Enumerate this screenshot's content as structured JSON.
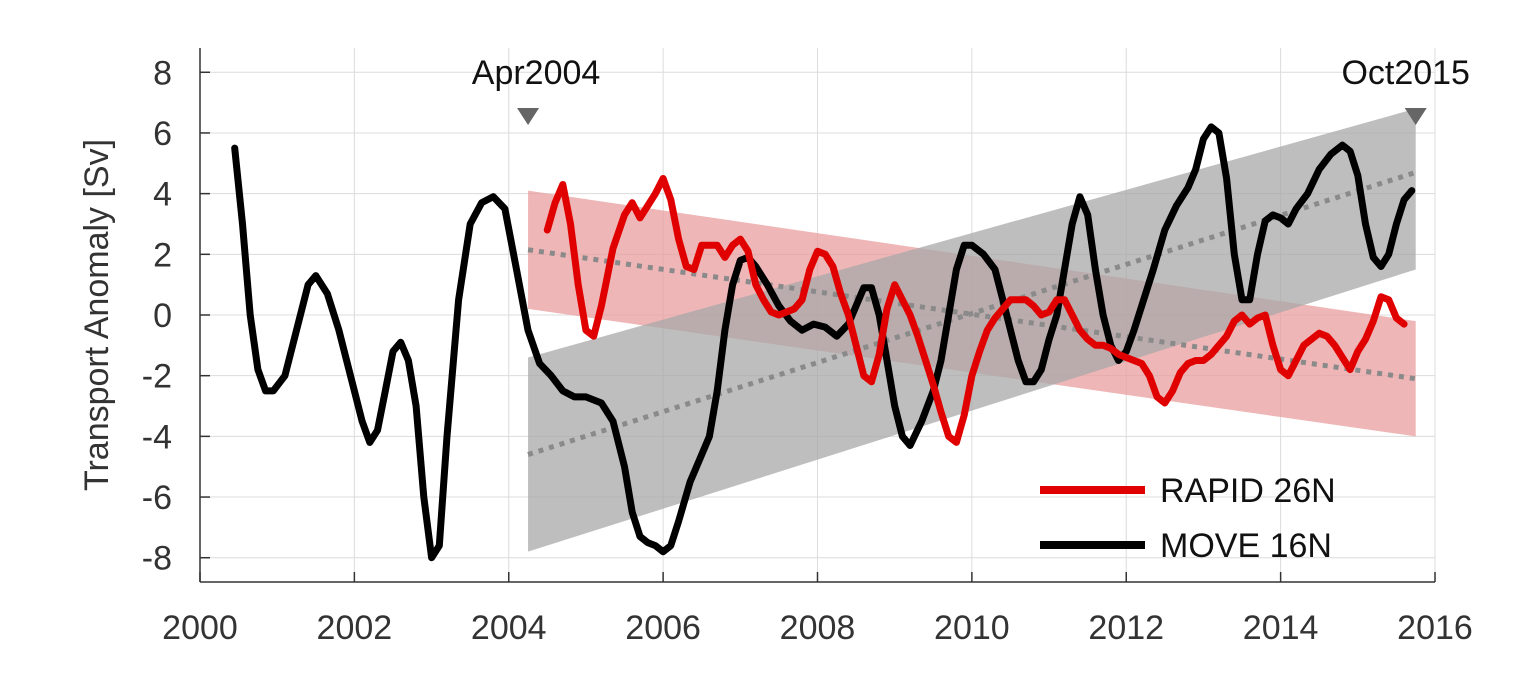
{
  "chart_data": {
    "type": "line",
    "title": "",
    "xlabel": "",
    "ylabel": "Transport Anomaly [Sv]",
    "xlim": [
      2000,
      2016
    ],
    "ylim": [
      -8.8,
      8.8
    ],
    "xticks": [
      2000,
      2002,
      2004,
      2006,
      2008,
      2010,
      2012,
      2014,
      2016
    ],
    "yticks": [
      -8,
      -6,
      -4,
      -2,
      0,
      2,
      4,
      6,
      8
    ],
    "grid": true,
    "legend_position": "bottom-right",
    "markers": [
      {
        "label": "Apr2004",
        "x": 2004.25
      },
      {
        "label": "Oct2015",
        "x": 2015.75
      }
    ],
    "series": [
      {
        "name": "RAPID 26N",
        "color": "#e00000",
        "points": [
          [
            2004.5,
            2.8
          ],
          [
            2004.6,
            3.7
          ],
          [
            2004.7,
            4.3
          ],
          [
            2004.8,
            3.0
          ],
          [
            2004.9,
            1.0
          ],
          [
            2005.0,
            -0.5
          ],
          [
            2005.1,
            -0.7
          ],
          [
            2005.2,
            0.3
          ],
          [
            2005.35,
            2.2
          ],
          [
            2005.5,
            3.3
          ],
          [
            2005.6,
            3.7
          ],
          [
            2005.7,
            3.2
          ],
          [
            2005.8,
            3.6
          ],
          [
            2005.9,
            4.0
          ],
          [
            2006.0,
            4.5
          ],
          [
            2006.1,
            3.8
          ],
          [
            2006.2,
            2.5
          ],
          [
            2006.3,
            1.6
          ],
          [
            2006.4,
            1.5
          ],
          [
            2006.5,
            2.3
          ],
          [
            2006.6,
            2.3
          ],
          [
            2006.7,
            2.3
          ],
          [
            2006.8,
            1.9
          ],
          [
            2006.9,
            2.3
          ],
          [
            2007.0,
            2.5
          ],
          [
            2007.1,
            2.1
          ],
          [
            2007.2,
            1.0
          ],
          [
            2007.3,
            0.5
          ],
          [
            2007.4,
            0.1
          ],
          [
            2007.5,
            0.0
          ],
          [
            2007.6,
            0.1
          ],
          [
            2007.7,
            0.2
          ],
          [
            2007.8,
            0.5
          ],
          [
            2007.9,
            1.5
          ],
          [
            2008.0,
            2.1
          ],
          [
            2008.1,
            2.0
          ],
          [
            2008.2,
            1.6
          ],
          [
            2008.3,
            0.7
          ],
          [
            2008.4,
            0.0
          ],
          [
            2008.5,
            -1.0
          ],
          [
            2008.6,
            -2.0
          ],
          [
            2008.7,
            -2.2
          ],
          [
            2008.8,
            -1.3
          ],
          [
            2008.9,
            0.2
          ],
          [
            2009.0,
            1.0
          ],
          [
            2009.1,
            0.5
          ],
          [
            2009.2,
            0.0
          ],
          [
            2009.3,
            -0.7
          ],
          [
            2009.4,
            -1.5
          ],
          [
            2009.5,
            -2.3
          ],
          [
            2009.6,
            -3.2
          ],
          [
            2009.7,
            -4.0
          ],
          [
            2009.8,
            -4.2
          ],
          [
            2009.9,
            -3.3
          ],
          [
            2010.0,
            -2.0
          ],
          [
            2010.1,
            -1.2
          ],
          [
            2010.2,
            -0.5
          ],
          [
            2010.3,
            -0.1
          ],
          [
            2010.4,
            0.2
          ],
          [
            2010.5,
            0.5
          ],
          [
            2010.6,
            0.5
          ],
          [
            2010.7,
            0.5
          ],
          [
            2010.8,
            0.3
          ],
          [
            2010.9,
            0.0
          ],
          [
            2011.0,
            0.1
          ],
          [
            2011.1,
            0.5
          ],
          [
            2011.2,
            0.5
          ],
          [
            2011.3,
            0.0
          ],
          [
            2011.4,
            -0.5
          ],
          [
            2011.5,
            -0.8
          ],
          [
            2011.6,
            -1.0
          ],
          [
            2011.7,
            -1.0
          ],
          [
            2011.8,
            -1.1
          ],
          [
            2011.9,
            -1.3
          ],
          [
            2012.0,
            -1.4
          ],
          [
            2012.1,
            -1.5
          ],
          [
            2012.2,
            -1.6
          ],
          [
            2012.3,
            -2.0
          ],
          [
            2012.4,
            -2.7
          ],
          [
            2012.5,
            -2.9
          ],
          [
            2012.6,
            -2.5
          ],
          [
            2012.7,
            -1.9
          ],
          [
            2012.8,
            -1.6
          ],
          [
            2012.9,
            -1.5
          ],
          [
            2013.0,
            -1.5
          ],
          [
            2013.1,
            -1.3
          ],
          [
            2013.2,
            -1.0
          ],
          [
            2013.3,
            -0.7
          ],
          [
            2013.4,
            -0.2
          ],
          [
            2013.5,
            0.0
          ],
          [
            2013.6,
            -0.3
          ],
          [
            2013.7,
            -0.1
          ],
          [
            2013.8,
            0.0
          ],
          [
            2013.9,
            -1.0
          ],
          [
            2014.0,
            -1.8
          ],
          [
            2014.1,
            -2.0
          ],
          [
            2014.2,
            -1.5
          ],
          [
            2014.3,
            -1.0
          ],
          [
            2014.4,
            -0.8
          ],
          [
            2014.5,
            -0.6
          ],
          [
            2014.6,
            -0.7
          ],
          [
            2014.7,
            -1.0
          ],
          [
            2014.8,
            -1.4
          ],
          [
            2014.9,
            -1.8
          ],
          [
            2015.0,
            -1.2
          ],
          [
            2015.1,
            -0.8
          ],
          [
            2015.2,
            -0.2
          ],
          [
            2015.3,
            0.6
          ],
          [
            2015.4,
            0.5
          ],
          [
            2015.5,
            -0.1
          ],
          [
            2015.6,
            -0.3
          ]
        ]
      },
      {
        "name": "MOVE 16N",
        "color": "#000000",
        "points": [
          [
            2000.45,
            5.5
          ],
          [
            2000.55,
            3.0
          ],
          [
            2000.65,
            0.0
          ],
          [
            2000.75,
            -1.8
          ],
          [
            2000.85,
            -2.5
          ],
          [
            2000.95,
            -2.5
          ],
          [
            2001.1,
            -2.0
          ],
          [
            2001.25,
            -0.5
          ],
          [
            2001.4,
            1.0
          ],
          [
            2001.5,
            1.3
          ],
          [
            2001.65,
            0.7
          ],
          [
            2001.8,
            -0.5
          ],
          [
            2001.95,
            -2.0
          ],
          [
            2002.1,
            -3.5
          ],
          [
            2002.2,
            -4.2
          ],
          [
            2002.3,
            -3.8
          ],
          [
            2002.4,
            -2.5
          ],
          [
            2002.5,
            -1.2
          ],
          [
            2002.6,
            -0.9
          ],
          [
            2002.7,
            -1.5
          ],
          [
            2002.8,
            -3.0
          ],
          [
            2002.9,
            -6.0
          ],
          [
            2003.0,
            -8.0
          ],
          [
            2003.1,
            -7.6
          ],
          [
            2003.2,
            -4.0
          ],
          [
            2003.35,
            0.5
          ],
          [
            2003.5,
            3.0
          ],
          [
            2003.65,
            3.7
          ],
          [
            2003.8,
            3.9
          ],
          [
            2003.95,
            3.5
          ],
          [
            2004.1,
            1.5
          ],
          [
            2004.25,
            -0.5
          ],
          [
            2004.4,
            -1.6
          ],
          [
            2004.55,
            -2.0
          ],
          [
            2004.7,
            -2.5
          ],
          [
            2004.85,
            -2.7
          ],
          [
            2005.0,
            -2.7
          ],
          [
            2005.2,
            -2.9
          ],
          [
            2005.35,
            -3.5
          ],
          [
            2005.5,
            -5.0
          ],
          [
            2005.6,
            -6.5
          ],
          [
            2005.7,
            -7.3
          ],
          [
            2005.8,
            -7.5
          ],
          [
            2005.9,
            -7.6
          ],
          [
            2006.0,
            -7.8
          ],
          [
            2006.1,
            -7.6
          ],
          [
            2006.2,
            -6.8
          ],
          [
            2006.35,
            -5.5
          ],
          [
            2006.5,
            -4.6
          ],
          [
            2006.6,
            -4.0
          ],
          [
            2006.7,
            -2.5
          ],
          [
            2006.8,
            -0.5
          ],
          [
            2006.9,
            1.0
          ],
          [
            2007.0,
            1.8
          ],
          [
            2007.1,
            1.9
          ],
          [
            2007.2,
            1.6
          ],
          [
            2007.35,
            1.0
          ],
          [
            2007.5,
            0.3
          ],
          [
            2007.65,
            -0.2
          ],
          [
            2007.8,
            -0.5
          ],
          [
            2007.95,
            -0.3
          ],
          [
            2008.1,
            -0.4
          ],
          [
            2008.25,
            -0.7
          ],
          [
            2008.4,
            -0.3
          ],
          [
            2008.5,
            0.3
          ],
          [
            2008.6,
            0.9
          ],
          [
            2008.7,
            0.9
          ],
          [
            2008.8,
            0.0
          ],
          [
            2008.9,
            -1.5
          ],
          [
            2009.0,
            -3.0
          ],
          [
            2009.1,
            -4.0
          ],
          [
            2009.2,
            -4.3
          ],
          [
            2009.35,
            -3.5
          ],
          [
            2009.5,
            -2.5
          ],
          [
            2009.6,
            -1.5
          ],
          [
            2009.7,
            0.0
          ],
          [
            2009.8,
            1.5
          ],
          [
            2009.9,
            2.3
          ],
          [
            2010.0,
            2.3
          ],
          [
            2010.15,
            2.0
          ],
          [
            2010.3,
            1.5
          ],
          [
            2010.4,
            0.5
          ],
          [
            2010.5,
            -0.5
          ],
          [
            2010.6,
            -1.5
          ],
          [
            2010.7,
            -2.2
          ],
          [
            2010.8,
            -2.2
          ],
          [
            2010.9,
            -1.8
          ],
          [
            2011.0,
            -0.8
          ],
          [
            2011.1,
            0.0
          ],
          [
            2011.2,
            1.5
          ],
          [
            2011.3,
            3.0
          ],
          [
            2011.4,
            3.9
          ],
          [
            2011.5,
            3.3
          ],
          [
            2011.6,
            1.5
          ],
          [
            2011.7,
            0.0
          ],
          [
            2011.8,
            -1.0
          ],
          [
            2011.9,
            -1.5
          ],
          [
            2012.0,
            -1.2
          ],
          [
            2012.1,
            -0.5
          ],
          [
            2012.2,
            0.3
          ],
          [
            2012.35,
            1.5
          ],
          [
            2012.5,
            2.8
          ],
          [
            2012.65,
            3.6
          ],
          [
            2012.8,
            4.2
          ],
          [
            2012.9,
            4.8
          ],
          [
            2013.0,
            5.8
          ],
          [
            2013.1,
            6.2
          ],
          [
            2013.2,
            6.0
          ],
          [
            2013.3,
            4.5
          ],
          [
            2013.4,
            2.0
          ],
          [
            2013.5,
            0.5
          ],
          [
            2013.6,
            0.5
          ],
          [
            2013.7,
            2.0
          ],
          [
            2013.8,
            3.1
          ],
          [
            2013.9,
            3.3
          ],
          [
            2014.0,
            3.2
          ],
          [
            2014.1,
            3.0
          ],
          [
            2014.2,
            3.5
          ],
          [
            2014.35,
            4.0
          ],
          [
            2014.5,
            4.8
          ],
          [
            2014.65,
            5.3
          ],
          [
            2014.8,
            5.6
          ],
          [
            2014.9,
            5.4
          ],
          [
            2015.0,
            4.6
          ],
          [
            2015.1,
            3.0
          ],
          [
            2015.2,
            1.9
          ],
          [
            2015.3,
            1.6
          ],
          [
            2015.4,
            2.0
          ],
          [
            2015.5,
            3.0
          ],
          [
            2015.6,
            3.8
          ],
          [
            2015.7,
            4.1
          ]
        ]
      }
    ],
    "trend_bands": [
      {
        "series": "RAPID 26N",
        "color": "#e89e9e",
        "x": [
          2004.25,
          2015.75
        ],
        "trend": [
          2.15,
          -2.1
        ],
        "upper": [
          4.1,
          -0.2
        ],
        "lower": [
          0.2,
          -4.0
        ]
      },
      {
        "series": "MOVE 16N",
        "color": "#a8a8a8",
        "x": [
          2004.25,
          2015.75
        ],
        "trend": [
          -4.6,
          4.7
        ],
        "upper": [
          -1.4,
          6.8
        ],
        "lower": [
          -7.8,
          1.5
        ]
      }
    ]
  }
}
